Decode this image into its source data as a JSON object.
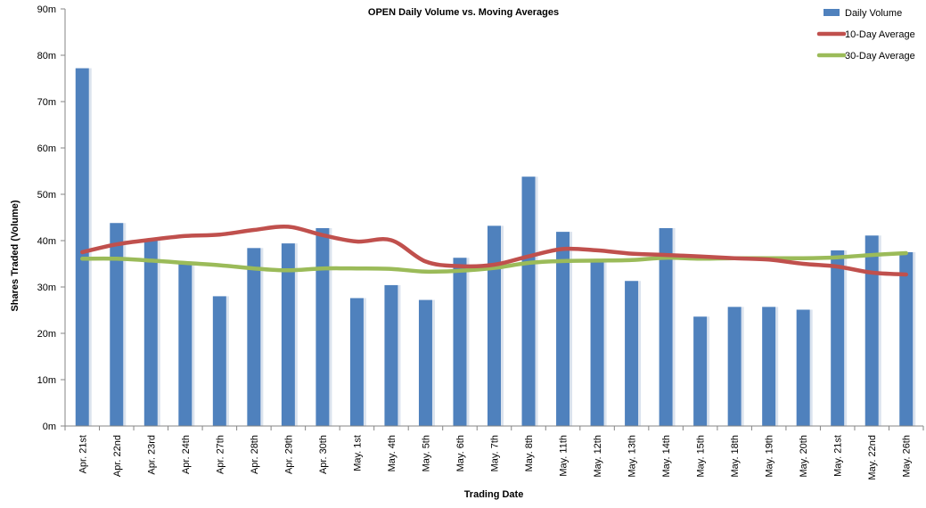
{
  "chart_data": {
    "type": "bar",
    "title": "OPEN Daily Volume vs. Moving Averages",
    "xlabel": "Trading Date",
    "ylabel": "Shares Traded (Volume)",
    "ylim": [
      0,
      90
    ],
    "yticks": [
      "0m",
      "10m",
      "20m",
      "30m",
      "40m",
      "50m",
      "60m",
      "70m",
      "80m",
      "90m"
    ],
    "grid": false,
    "legend_position": "top-right",
    "categories": [
      "Apr. 21st",
      "Apr. 22nd",
      "Apr. 23rd",
      "Apr. 24th",
      "Apr. 27th",
      "Apr. 28th",
      "Apr. 29th",
      "Apr. 30th",
      "May. 1st",
      "May. 4th",
      "May. 5th",
      "May. 6th",
      "May. 7th",
      "May. 8th",
      "May. 11th",
      "May. 12th",
      "May. 13th",
      "May. 14th",
      "May. 15th",
      "May. 18th",
      "May. 19th",
      "May. 20th",
      "May. 21st",
      "May. 22nd",
      "May. 26th"
    ],
    "series": [
      {
        "name": "Daily Volume",
        "kind": "bar",
        "color": "#4f81bd",
        "values": [
          77.2,
          43.8,
          40.0,
          35.5,
          28.0,
          38.4,
          39.4,
          42.7,
          27.6,
          30.4,
          27.2,
          36.3,
          43.2,
          53.8,
          41.9,
          36.0,
          31.3,
          42.7,
          23.6,
          25.7,
          25.7,
          25.1,
          37.9,
          41.1,
          37.5
        ]
      },
      {
        "name": "10-Day Average",
        "kind": "line",
        "color": "#c0504d",
        "values": [
          37.5,
          39.2,
          40.2,
          41.0,
          41.3,
          42.3,
          43.0,
          41.2,
          39.8,
          40.1,
          35.5,
          34.5,
          34.8,
          36.6,
          38.2,
          37.9,
          37.2,
          36.9,
          36.6,
          36.2,
          35.9,
          35.0,
          34.4,
          33.1,
          32.7
        ]
      },
      {
        "name": "30-Day Average",
        "kind": "line",
        "color": "#9bbb59",
        "values": [
          36.1,
          36.1,
          35.7,
          35.2,
          34.7,
          34.0,
          33.6,
          34.0,
          34.0,
          33.9,
          33.3,
          33.5,
          34.1,
          35.2,
          35.6,
          35.7,
          35.8,
          36.3,
          36.1,
          36.2,
          36.2,
          36.2,
          36.4,
          36.9,
          37.3
        ]
      }
    ]
  }
}
